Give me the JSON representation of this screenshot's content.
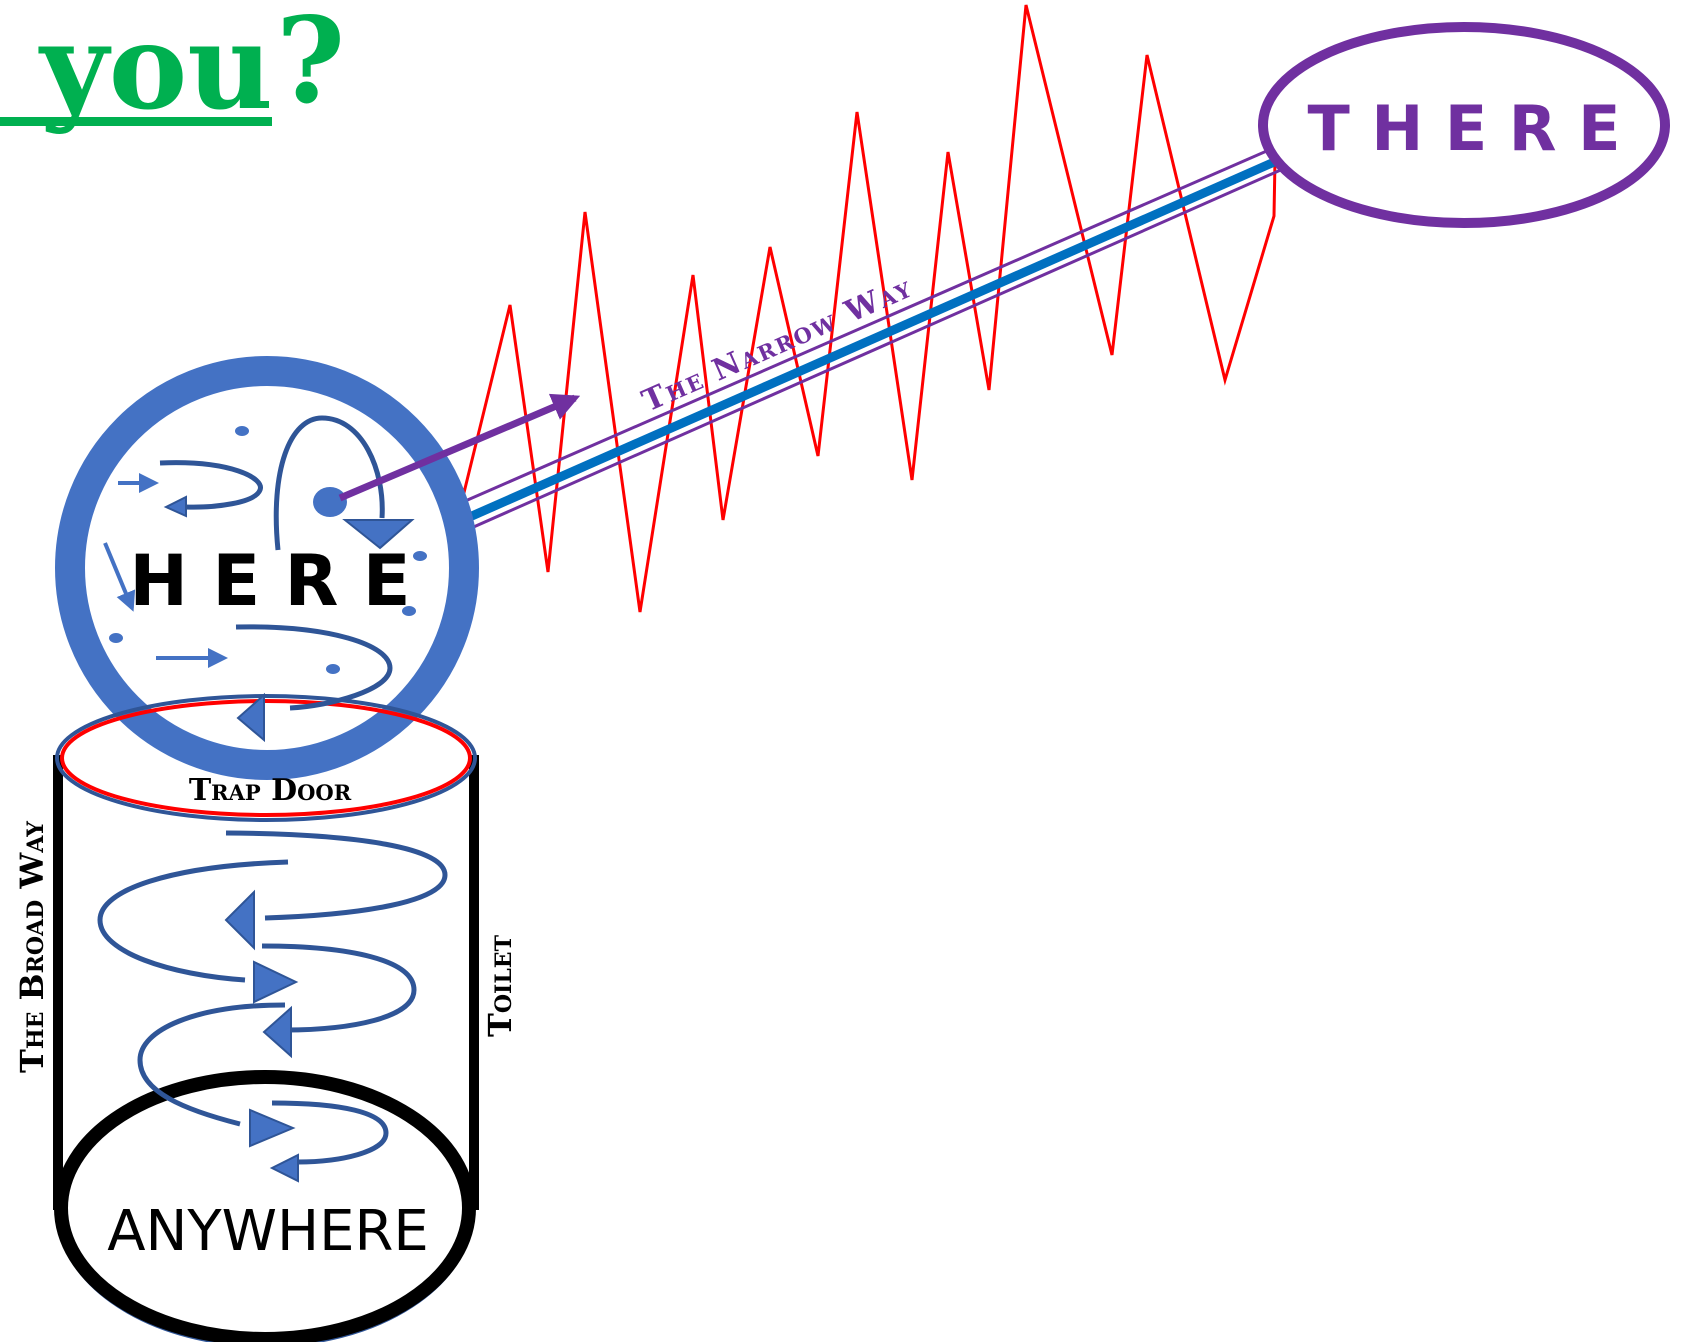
{
  "title": {
    "word": "you",
    "punct": "?"
  },
  "labels": {
    "there": "T H E R E",
    "here": "H E R E",
    "narrow_way": "The Narrow Way",
    "trap_door": "Trap Door",
    "broad_way": "The Broad Way",
    "toilet": "Toilet",
    "anywhere": "ANYWHERE"
  },
  "colors": {
    "title_green": "#00b050",
    "purple": "#7030a0",
    "blue": "#4472c4",
    "dark_blue": "#2f5597",
    "beam_blue": "#0070c0",
    "red": "#ff0000",
    "black": "#000000"
  }
}
